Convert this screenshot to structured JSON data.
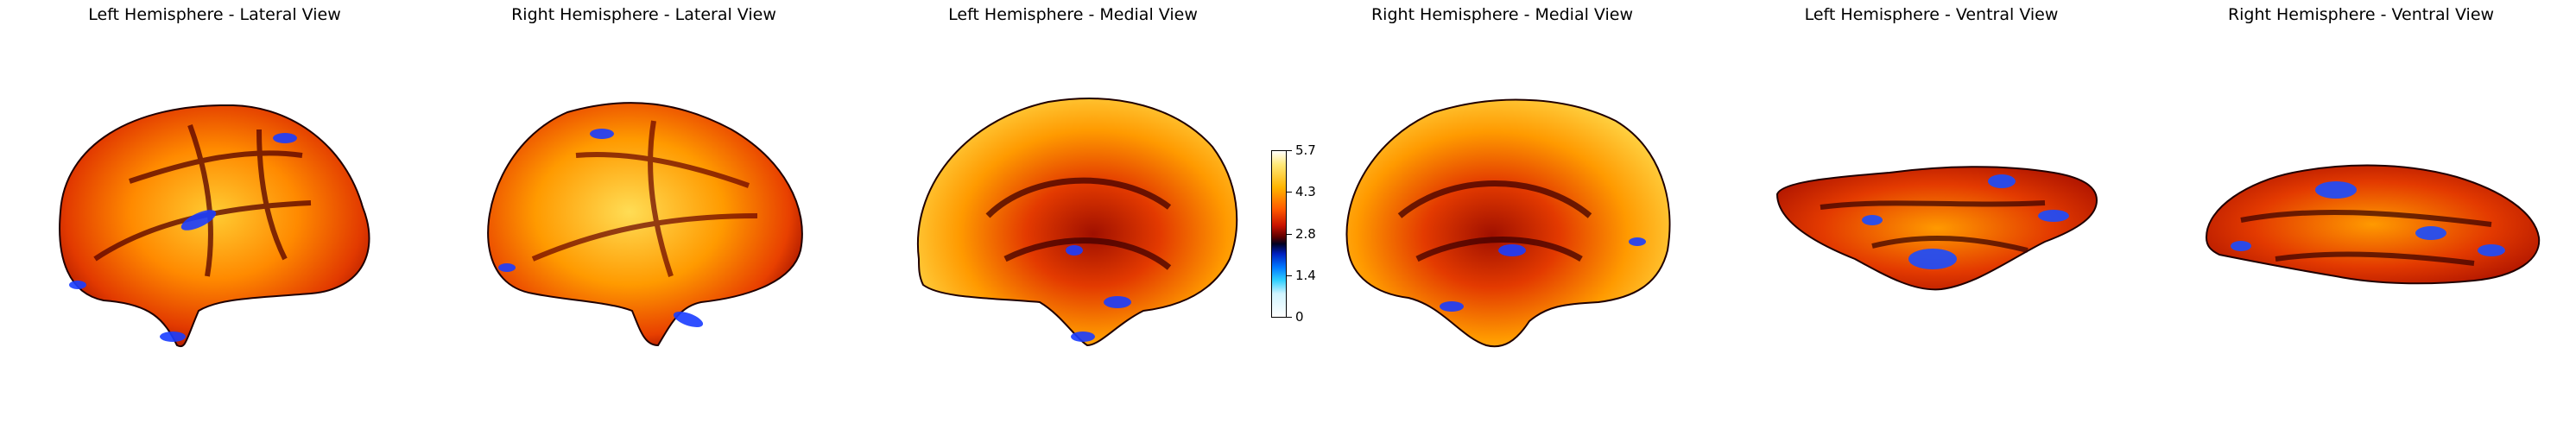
{
  "panels": [
    {
      "title": "Left Hemisphere - Lateral View"
    },
    {
      "title": "Right Hemisphere - Lateral View"
    },
    {
      "title": "Left Hemisphere - Medial View"
    },
    {
      "title": "Right Hemisphere - Medial View"
    },
    {
      "title": "Left Hemisphere - Ventral View"
    },
    {
      "title": "Right Hemisphere - Ventral View"
    }
  ],
  "colorbar": {
    "ticks": [
      "5.7",
      "4.3",
      "2.8",
      "1.4",
      "0"
    ]
  },
  "colors": {
    "low": "#ffffff",
    "blue": "#0055ff",
    "dark": "#000000",
    "red": "#cc1100",
    "orange": "#ff7a00",
    "yellow": "#ffee66"
  }
}
